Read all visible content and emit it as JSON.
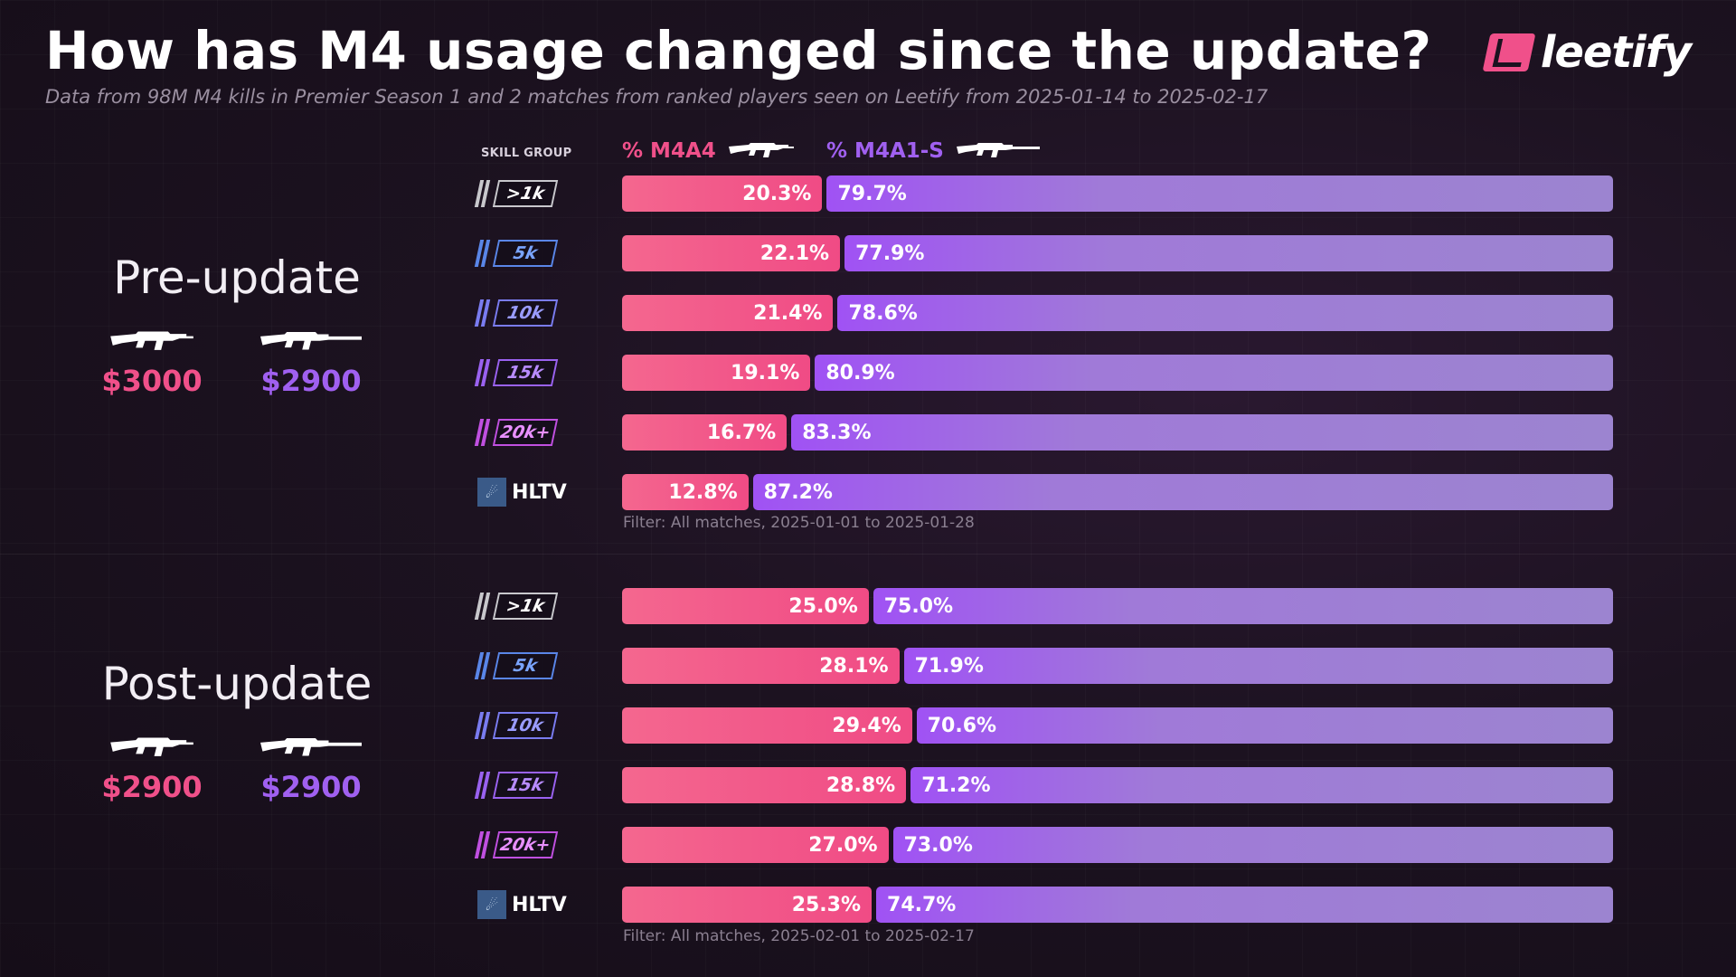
{
  "header": {
    "title": "How has M4 usage changed since the update?",
    "subtitle": "Data from 98M M4 kills in Premier Season 1 and 2 matches from ranked players seen on Leetify from 2025-01-14 to 2025-02-17",
    "logo": "leetify"
  },
  "legend": {
    "skill_group": "SKILL GROUP",
    "m4a4": "% M4A4",
    "m4a1": "% M4A1-S"
  },
  "colors": {
    "m4a4": "#f04b85",
    "m4a1": "#a052f4"
  },
  "sections": [
    {
      "title": "Pre-update",
      "m4a4_price": "$3000",
      "m4a1_price": "$2900",
      "filter": "Filter: All matches, 2025-01-01 to 2025-01-28"
    },
    {
      "title": "Post-update",
      "m4a4_price": "$2900",
      "m4a1_price": "$2900",
      "filter": "Filter: All matches, 2025-02-01 to 2025-02-17"
    }
  ],
  "chart_data": [
    {
      "type": "bar",
      "stacked": true,
      "orientation": "horizontal",
      "title": "Pre-update",
      "categories": [
        ">1k",
        "5k",
        "10k",
        "15k",
        "20k+",
        "HLTV"
      ],
      "series": [
        {
          "name": "% M4A4",
          "values": [
            20.3,
            22.1,
            21.4,
            19.1,
            16.7,
            12.8
          ],
          "labels": [
            "20.3%",
            "22.1%",
            "21.4%",
            "19.1%",
            "16.7%",
            "12.8%"
          ]
        },
        {
          "name": "% M4A1-S",
          "values": [
            79.7,
            77.9,
            78.6,
            80.9,
            83.3,
            87.2
          ],
          "labels": [
            "79.7%",
            "77.9%",
            "78.6%",
            "80.9%",
            "83.3%",
            "87.2%"
          ]
        }
      ],
      "xlim": [
        0,
        100
      ]
    },
    {
      "type": "bar",
      "stacked": true,
      "orientation": "horizontal",
      "title": "Post-update",
      "categories": [
        ">1k",
        "5k",
        "10k",
        "15k",
        "20k+",
        "HLTV"
      ],
      "series": [
        {
          "name": "% M4A4",
          "values": [
            25.0,
            28.1,
            29.4,
            28.8,
            27.0,
            25.3
          ],
          "labels": [
            "25.0%",
            "28.1%",
            "29.4%",
            "28.8%",
            "27.0%",
            "25.3%"
          ]
        },
        {
          "name": "% M4A1-S",
          "values": [
            75.0,
            71.9,
            70.6,
            71.2,
            73.0,
            74.7
          ],
          "labels": [
            "75.0%",
            "71.9%",
            "70.6%",
            "71.2%",
            "73.0%",
            "74.7%"
          ]
        }
      ],
      "xlim": [
        0,
        100
      ]
    }
  ]
}
